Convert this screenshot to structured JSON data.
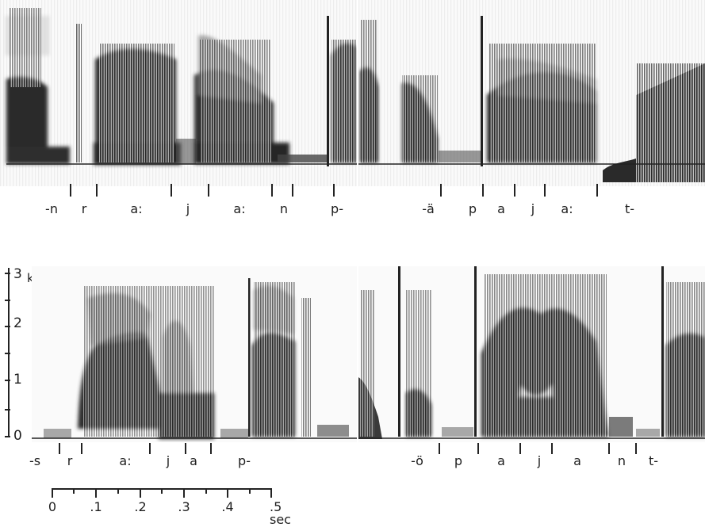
{
  "panels": [
    {
      "id": "top-left",
      "segments": [
        "-n",
        "r",
        "a:",
        "j",
        "a:",
        "n",
        "p-"
      ]
    },
    {
      "id": "top-right",
      "segments": [
        "-ä",
        "p",
        "a",
        "j",
        "a:",
        "t-"
      ]
    },
    {
      "id": "bottom-left",
      "segments": [
        "-s",
        "r",
        "a:",
        "j",
        "a",
        "p-"
      ]
    },
    {
      "id": "bottom-right",
      "segments": [
        "-ö",
        "p",
        "a",
        "j",
        "a",
        "n",
        "t-"
      ]
    }
  ],
  "freq_axis": {
    "unit": "kHz",
    "labels": [
      "3",
      "2",
      "1",
      "0"
    ]
  },
  "time_scale": {
    "labels": [
      "0",
      ".1",
      ".2",
      ".3",
      ".4",
      ".5 sec"
    ]
  },
  "colors": {
    "ink": "#1e1e1e",
    "paper": "#ffffff",
    "energy": "#2b2b2b"
  }
}
